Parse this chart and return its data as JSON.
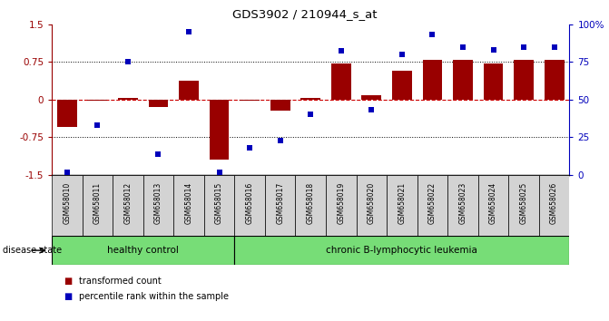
{
  "title": "GDS3902 / 210944_s_at",
  "samples": [
    "GSM658010",
    "GSM658011",
    "GSM658012",
    "GSM658013",
    "GSM658014",
    "GSM658015",
    "GSM658016",
    "GSM658017",
    "GSM658018",
    "GSM658019",
    "GSM658020",
    "GSM658021",
    "GSM658022",
    "GSM658023",
    "GSM658024",
    "GSM658025",
    "GSM658026"
  ],
  "bar_values": [
    -0.55,
    -0.02,
    0.03,
    -0.15,
    0.38,
    -1.2,
    -0.02,
    -0.22,
    0.03,
    0.72,
    0.08,
    0.58,
    0.78,
    0.78,
    0.72,
    0.78,
    0.78
  ],
  "dot_values": [
    2,
    33,
    75,
    14,
    95,
    2,
    18,
    23,
    40,
    82,
    43,
    80,
    93,
    85,
    83,
    85,
    85
  ],
  "bar_color": "#990000",
  "dot_color": "#0000bb",
  "ylim_left": [
    -1.5,
    1.5
  ],
  "ylim_right": [
    0,
    100
  ],
  "yticks_left": [
    -1.5,
    -0.75,
    0.0,
    0.75,
    1.5
  ],
  "ytick_labels_left": [
    "-1.5",
    "-0.75",
    "0",
    "0.75",
    "1.5"
  ],
  "yticks_right": [
    0,
    25,
    50,
    75,
    100
  ],
  "ytick_labels_right": [
    "0",
    "25",
    "50",
    "75",
    "100%"
  ],
  "hlines_dotted": [
    -0.75,
    0.75
  ],
  "hline_dashed": 0.0,
  "healthy_count": 6,
  "group1_label": "healthy control",
  "group2_label": "chronic B-lymphocytic leukemia",
  "disease_state_label": "disease state",
  "legend1": "transformed count",
  "legend2": "percentile rank within the sample",
  "bg_color": "#ffffff",
  "sample_bg": "#d3d3d3",
  "group_color": "#77dd77"
}
